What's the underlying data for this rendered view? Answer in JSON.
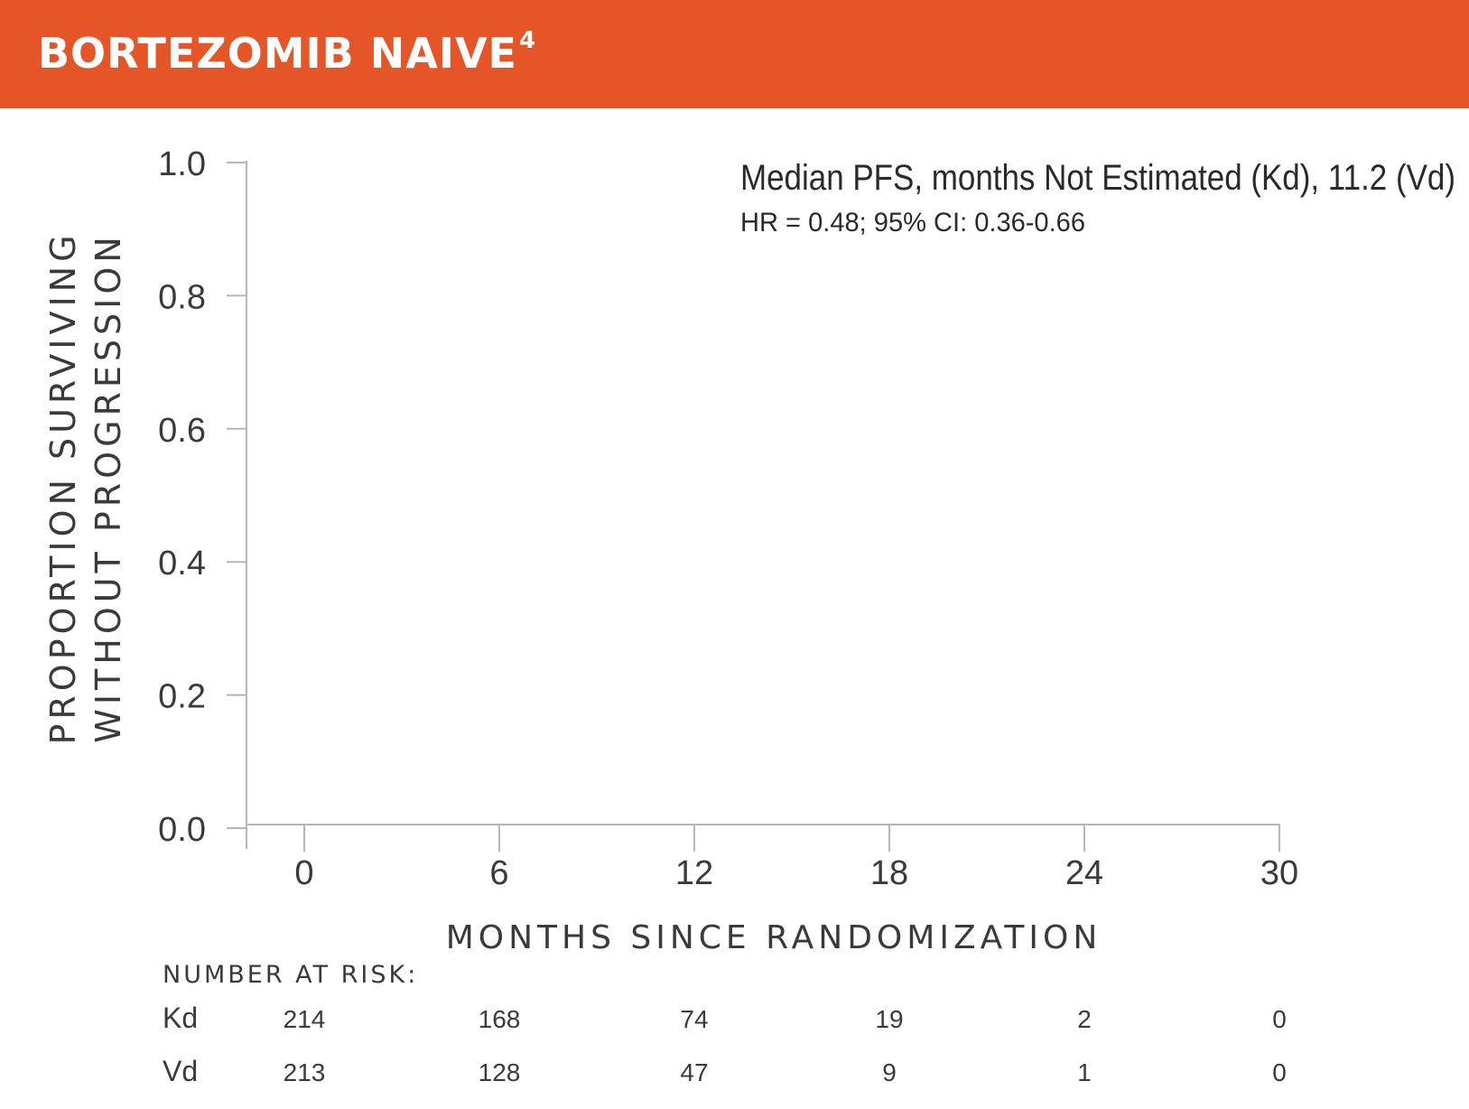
{
  "header": {
    "title": "BORTEZOMIB NAIVE",
    "title_superscript": "4",
    "background_color": "#e65527"
  },
  "chart_data": {
    "type": "line",
    "title": "",
    "annotation_line1": "Median PFS, months Not Estimated (Kd), 11.2 (Vd)",
    "annotation_line2": "HR = 0.48; 95% CI: 0.36-0.66",
    "ylabel_line1": "PROPORTION SURVIVING",
    "ylabel_line2": "WITHOUT PROGRESSION",
    "xlabel": "MONTHS SINCE RANDOMIZATION",
    "xlim": [
      0,
      30
    ],
    "ylim": [
      0,
      1
    ],
    "x_ticks": [
      0,
      6,
      12,
      18,
      24,
      30
    ],
    "x_tick_labels": [
      "0",
      "6",
      "12",
      "18",
      "24",
      "30"
    ],
    "y_ticks": [
      0,
      0.2,
      0.4,
      0.6,
      0.8,
      1.0
    ],
    "y_tick_labels": [
      "0.0",
      "0.2",
      "0.4",
      "0.6",
      "0.8",
      "1.0"
    ],
    "series": [],
    "grid": false,
    "axis_color": "#b5b5b5"
  },
  "risk_table": {
    "title": "NUMBER AT RISK:",
    "months": [
      0,
      6,
      12,
      18,
      24,
      30
    ],
    "rows": [
      {
        "label": "Kd",
        "values": [
          "214",
          "168",
          "74",
          "19",
          "2",
          "0"
        ]
      },
      {
        "label": "Vd",
        "values": [
          "213",
          "128",
          "47",
          "9",
          "1",
          "0"
        ]
      }
    ]
  }
}
